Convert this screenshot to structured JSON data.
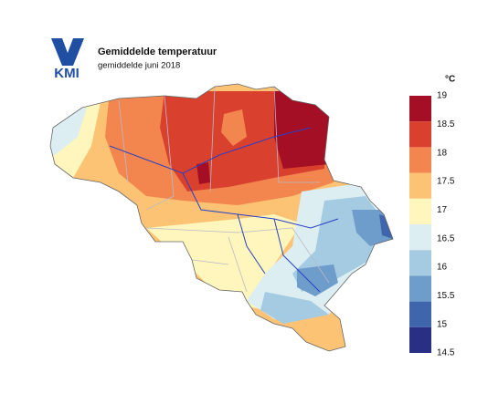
{
  "header": {
    "logo": "KMI",
    "title": "Gemiddelde temperatuur",
    "subtitle": "gemiddelde juni 2018"
  },
  "legend": {
    "unit": "°C",
    "ticks": [
      19,
      18.5,
      18,
      17.5,
      17,
      16.5,
      16,
      15.5,
      15,
      14.5
    ],
    "colors": [
      "#a50f26",
      "#d9412e",
      "#f3864f",
      "#fcc374",
      "#fef6bd",
      "#ddeef3",
      "#a5cbe2",
      "#6f9dcb",
      "#3f66ad",
      "#2a2f86"
    ]
  }
}
